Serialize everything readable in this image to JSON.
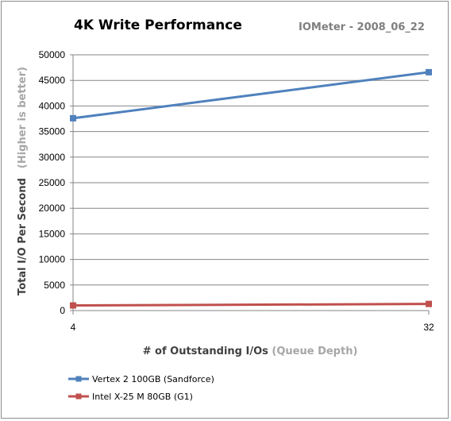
{
  "chart_data": {
    "type": "line",
    "title": "4K Write  Performance",
    "subtitle": "IOMeter - 2008_06_22",
    "xlabel": {
      "main": "# of Outstanding I/Os",
      "note": " (Queue Depth)"
    },
    "ylabel": {
      "main": "Total I/O Per Second",
      "note": "(Higher is better)"
    },
    "x": [
      4,
      32
    ],
    "x_tick_labels": [
      "4",
      "32"
    ],
    "ylim": [
      0,
      50000
    ],
    "y_ticks": [
      0,
      5000,
      10000,
      15000,
      20000,
      25000,
      30000,
      35000,
      40000,
      45000,
      50000
    ],
    "grid": "horizontal",
    "legend_position": "bottom-left",
    "series": [
      {
        "name": "Vertex 2 100GB (Sandforce)",
        "values": [
          37600,
          46600
        ],
        "color": "#4f81bd"
      },
      {
        "name": "Intel X-25 M 80GB (G1)",
        "values": [
          1000,
          1300
        ],
        "color": "#c0504d"
      }
    ]
  }
}
